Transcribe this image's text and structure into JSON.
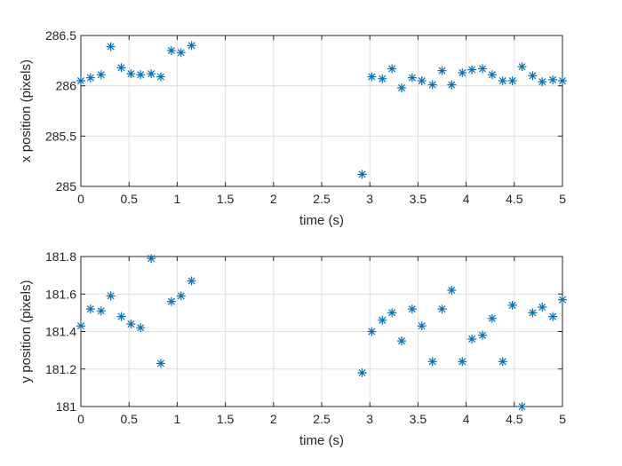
{
  "chart_data": [
    {
      "type": "scatter",
      "xlabel": "time (s)",
      "ylabel": "x position (pixels)",
      "xlim": [
        0,
        5
      ],
      "ylim": [
        285,
        286.5
      ],
      "xticks": [
        "0",
        "0.5",
        "1",
        "1.5",
        "2",
        "2.5",
        "3",
        "3.5",
        "4",
        "4.5",
        "5"
      ],
      "yticks": [
        "285",
        "285.5",
        "286",
        "286.5"
      ],
      "grid": true,
      "marker": "asterisk",
      "color": "#0072bd",
      "series": [
        {
          "x": [
            0.0,
            0.1,
            0.21,
            0.31,
            0.42,
            0.52,
            0.62,
            0.73,
            0.83,
            0.94,
            1.04,
            1.15,
            2.92,
            3.02,
            3.13,
            3.23,
            3.33,
            3.44,
            3.54,
            3.65,
            3.75,
            3.85,
            3.96,
            4.06,
            4.17,
            4.27,
            4.38,
            4.48,
            4.58,
            4.69,
            4.79,
            4.9,
            5.0
          ],
          "y": [
            286.05,
            286.08,
            286.11,
            286.39,
            286.18,
            286.12,
            286.11,
            286.12,
            286.09,
            286.35,
            286.33,
            286.4,
            285.12,
            286.09,
            286.07,
            286.17,
            285.98,
            286.08,
            286.05,
            286.01,
            286.15,
            286.01,
            286.13,
            286.16,
            286.17,
            286.11,
            286.05,
            286.05,
            286.19,
            286.1,
            286.04,
            286.06,
            286.05
          ]
        }
      ]
    },
    {
      "type": "scatter",
      "xlabel": "time (s)",
      "ylabel": "y position (pixels)",
      "xlim": [
        0,
        5
      ],
      "ylim": [
        181,
        181.8
      ],
      "xticks": [
        "0",
        "0.5",
        "1",
        "1.5",
        "2",
        "2.5",
        "3",
        "3.5",
        "4",
        "4.5",
        "5"
      ],
      "yticks": [
        "181",
        "181.2",
        "181.4",
        "181.6",
        "181.8"
      ],
      "grid": true,
      "marker": "asterisk",
      "color": "#0072bd",
      "series": [
        {
          "x": [
            0.0,
            0.1,
            0.21,
            0.31,
            0.42,
            0.52,
            0.62,
            0.73,
            0.83,
            0.94,
            1.04,
            1.15,
            2.92,
            3.02,
            3.13,
            3.23,
            3.33,
            3.44,
            3.54,
            3.65,
            3.75,
            3.85,
            3.96,
            4.06,
            4.17,
            4.27,
            4.38,
            4.48,
            4.58,
            4.69,
            4.79,
            4.9,
            5.0
          ],
          "y": [
            181.43,
            181.52,
            181.51,
            181.59,
            181.48,
            181.44,
            181.42,
            181.79,
            181.23,
            181.56,
            181.59,
            181.67,
            181.18,
            181.4,
            181.46,
            181.5,
            181.35,
            181.52,
            181.43,
            181.24,
            181.52,
            181.62,
            181.24,
            181.36,
            181.38,
            181.47,
            181.24,
            181.54,
            181.0,
            181.5,
            181.53,
            181.48,
            181.57
          ]
        }
      ]
    }
  ]
}
